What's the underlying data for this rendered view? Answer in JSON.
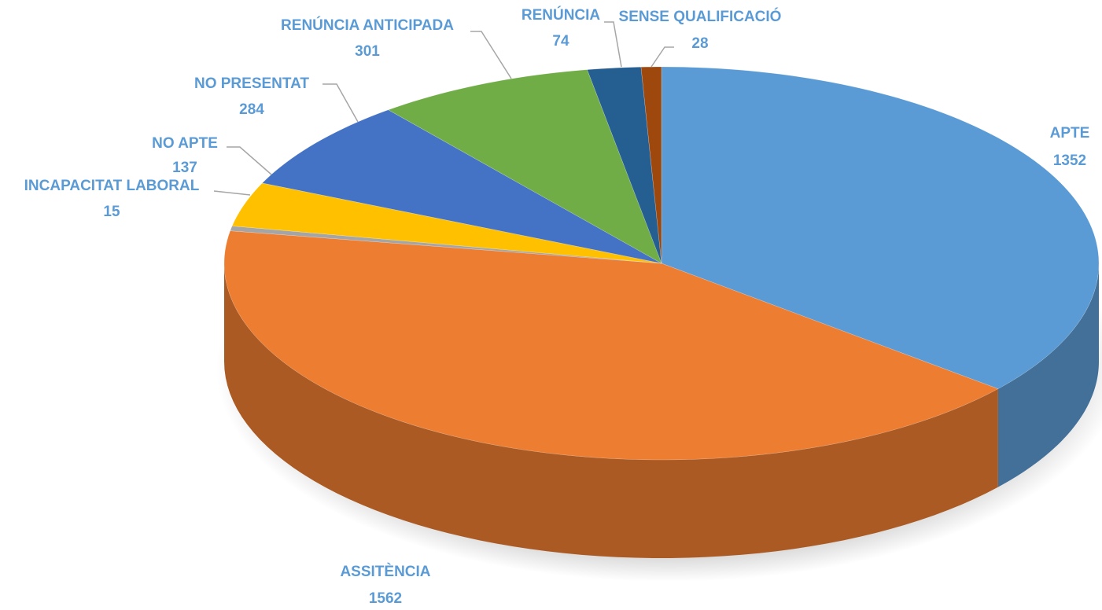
{
  "chart_data": {
    "type": "pie",
    "categories": [
      "APTE",
      "ASSITÈNCIA",
      "INCAPACITAT LABORAL",
      "NO APTE",
      "NO PRESENTAT",
      "RENÚNCIA ANTICIPADA",
      "RENÚNCIA",
      "SENSE QUALIFICACIÓ"
    ],
    "values": [
      1352,
      1562,
      15,
      137,
      284,
      301,
      74,
      28
    ],
    "colors": [
      "#5b9bd5",
      "#ed7d31",
      "#a5a5a5",
      "#ffc000",
      "#4472c4",
      "#70ad47",
      "#255e91",
      "#9e480e"
    ]
  }
}
